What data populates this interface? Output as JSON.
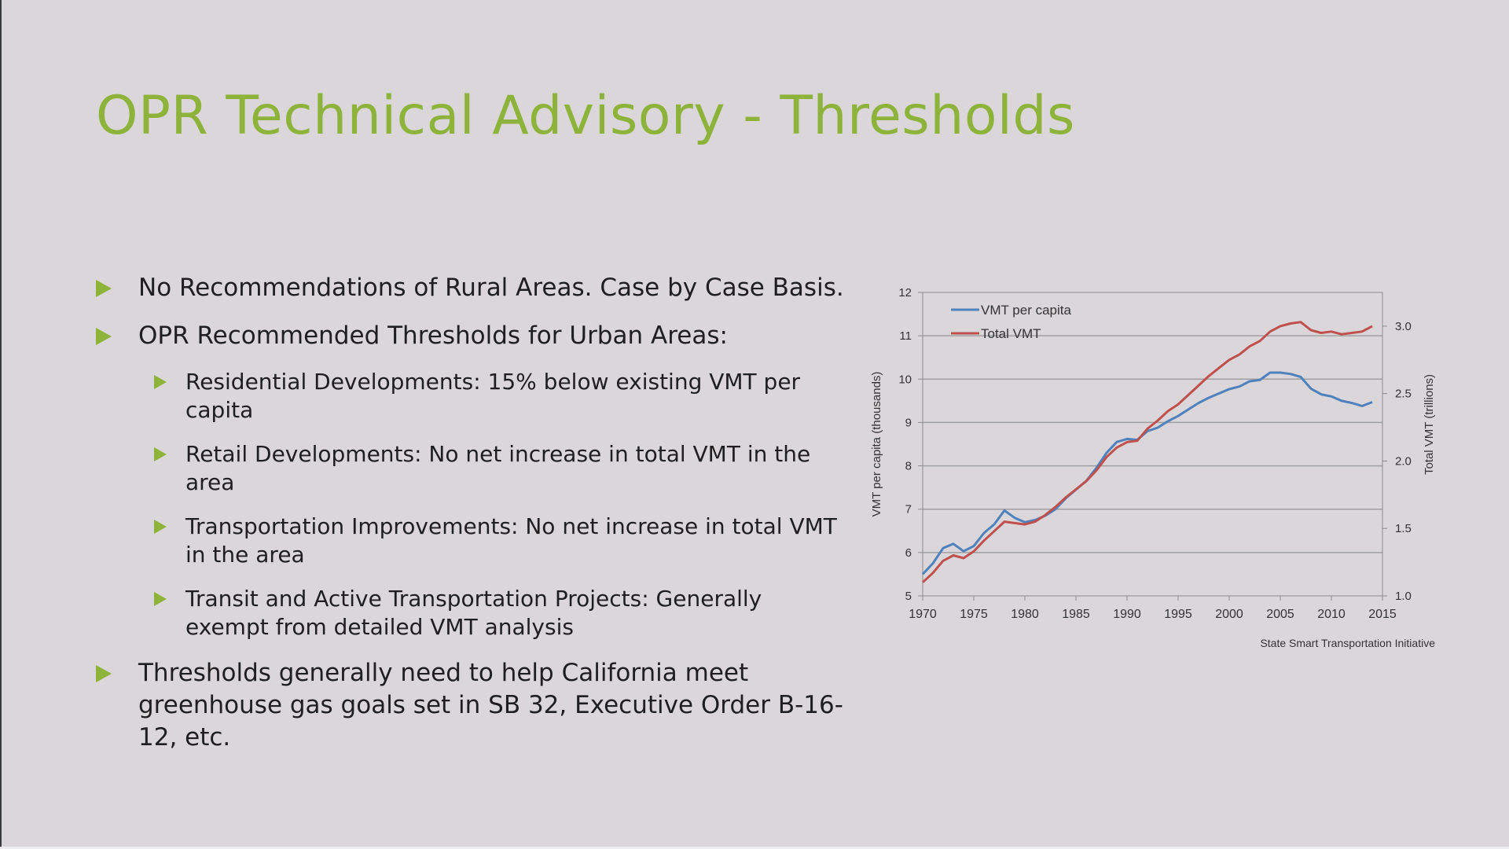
{
  "slide": {
    "title": "OPR Technical Advisory - Thresholds",
    "accent_color": "#8db33a",
    "bullets": {
      "rural": "No Recommendations of Rural Areas. Case by Case Basis.",
      "urban": "OPR Recommended Thresholds for Urban Areas:",
      "residential": "Residential Developments: 15% below existing VMT per capita",
      "retail": "Retail Developments: No net increase in total VMT in the area",
      "transportation": "Transportation Improvements: No net increase in total VMT in the area",
      "transit": "Transit and Active Transportation Projects: Generally exempt from detailed VMT analysis",
      "california": "Thresholds generally need to help California meet greenhouse gas goals set in SB 32, Executive Order B-16-12, etc."
    },
    "bullet_icon": "triangle-right-icon"
  },
  "chart_data": {
    "type": "line",
    "title": "",
    "source": "State Smart Transportation Initiative",
    "xlabel": "",
    "ylabel": "VMT per capita (thousands)",
    "y2label": "Total VMT (trillions)",
    "xlim": [
      1970,
      2015
    ],
    "ylim": [
      5,
      12
    ],
    "y2lim": [
      1.0,
      3.25
    ],
    "x_ticks": [
      1970,
      1975,
      1980,
      1985,
      1990,
      1995,
      2000,
      2005,
      2010,
      2015
    ],
    "y_ticks": [
      5,
      6,
      7,
      8,
      9,
      10,
      11,
      12
    ],
    "y2_ticks": [
      "1.0",
      "1.5",
      "2.0",
      "2.5",
      "3.0"
    ],
    "legend_position": "top-left",
    "grid": true,
    "x": [
      1970,
      1971,
      1972,
      1973,
      1974,
      1975,
      1976,
      1977,
      1978,
      1979,
      1980,
      1981,
      1982,
      1983,
      1984,
      1985,
      1986,
      1987,
      1988,
      1989,
      1990,
      1991,
      1992,
      1993,
      1994,
      1995,
      1996,
      1997,
      1998,
      1999,
      2000,
      2001,
      2002,
      2003,
      2004,
      2005,
      2006,
      2007,
      2008,
      2009,
      2010,
      2011,
      2012,
      2013,
      2014
    ],
    "series": [
      {
        "name": "VMT per capita",
        "color": "#4f81bd",
        "axis": "left",
        "values": [
          5.5,
          5.75,
          6.1,
          6.2,
          6.03,
          6.15,
          6.45,
          6.65,
          6.97,
          6.8,
          6.7,
          6.75,
          6.85,
          7.0,
          7.25,
          7.45,
          7.65,
          7.95,
          8.3,
          8.55,
          8.62,
          8.6,
          8.8,
          8.88,
          9.03,
          9.15,
          9.3,
          9.45,
          9.57,
          9.67,
          9.77,
          9.83,
          9.95,
          9.98,
          10.15,
          10.15,
          10.12,
          10.05,
          9.78,
          9.65,
          9.6,
          9.5,
          9.45,
          9.38,
          9.47
        ]
      },
      {
        "name": "Total VMT",
        "color": "#c0504d",
        "axis": "right",
        "values": [
          1.1,
          1.17,
          1.26,
          1.3,
          1.28,
          1.33,
          1.41,
          1.48,
          1.55,
          1.54,
          1.53,
          1.55,
          1.6,
          1.66,
          1.73,
          1.79,
          1.85,
          1.93,
          2.03,
          2.1,
          2.14,
          2.15,
          2.24,
          2.3,
          2.37,
          2.42,
          2.49,
          2.56,
          2.63,
          2.69,
          2.75,
          2.79,
          2.85,
          2.89,
          2.96,
          3.0,
          3.02,
          3.03,
          2.97,
          2.95,
          2.96,
          2.94,
          2.95,
          2.96,
          3.0
        ]
      }
    ]
  }
}
